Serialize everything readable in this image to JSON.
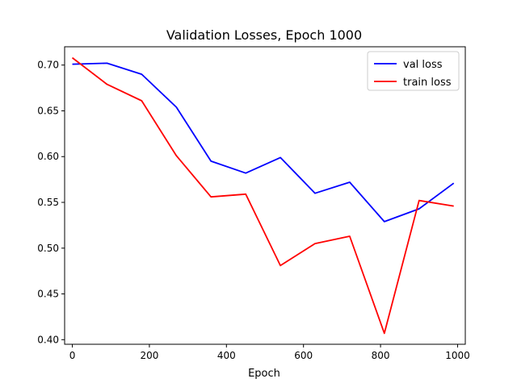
{
  "chart_data": {
    "type": "line",
    "title": "Validation Losses, Epoch 1000",
    "xlabel": "Epoch",
    "ylabel": "",
    "xlim": [
      -20,
      1020
    ],
    "ylim": [
      0.395,
      0.72
    ],
    "xticks": [
      0,
      200,
      400,
      600,
      800,
      1000
    ],
    "yticks": [
      0.4,
      0.45,
      0.5,
      0.55,
      0.6,
      0.65,
      0.7
    ],
    "xtick_labels": [
      "0",
      "200",
      "400",
      "600",
      "800",
      "1000"
    ],
    "ytick_labels": [
      "0.40",
      "0.45",
      "0.50",
      "0.55",
      "0.60",
      "0.65",
      "0.70"
    ],
    "x": [
      0,
      90,
      180,
      270,
      360,
      450,
      540,
      630,
      720,
      810,
      900,
      990
    ],
    "series": [
      {
        "name": "val loss",
        "color": "#0000ff",
        "values": [
          0.701,
          0.702,
          0.69,
          0.654,
          0.595,
          0.582,
          0.599,
          0.56,
          0.572,
          0.529,
          0.543,
          0.571
        ]
      },
      {
        "name": "train loss",
        "color": "#ff0000",
        "values": [
          0.708,
          0.679,
          0.661,
          0.601,
          0.556,
          0.559,
          0.481,
          0.505,
          0.513,
          0.407,
          0.552,
          0.546
        ]
      }
    ],
    "legend": "top-right",
    "grid": false
  }
}
